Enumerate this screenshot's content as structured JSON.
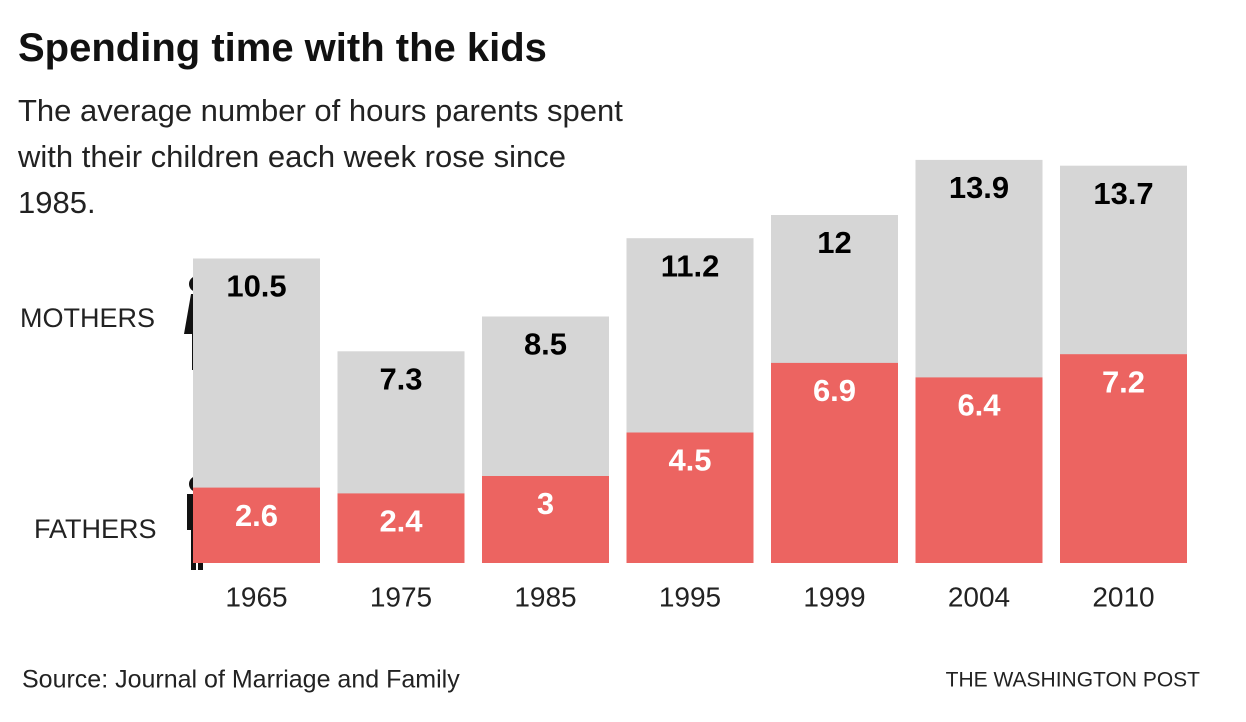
{
  "chart_data": {
    "type": "bar",
    "title": "Spending time with the kids",
    "subtitle": "The average number of hours parents spent with their children each week rose since 1985.",
    "categories": [
      "1965",
      "1975",
      "1985",
      "1995",
      "1999",
      "2004",
      "2010"
    ],
    "series": [
      {
        "name": "MOTHERS",
        "color": "#d6d6d6",
        "label_color": "#000000",
        "values": [
          10.5,
          7.3,
          8.5,
          11.2,
          12,
          13.9,
          13.7
        ]
      },
      {
        "name": "FATHERS",
        "color": "#ec6461",
        "label_color": "#ffffff",
        "values": [
          2.6,
          2.4,
          3,
          4.5,
          6.9,
          6.4,
          7.2
        ]
      }
    ],
    "source": "Source: Journal of Marriage and Family",
    "credit": "THE WASHINGTON POST"
  }
}
